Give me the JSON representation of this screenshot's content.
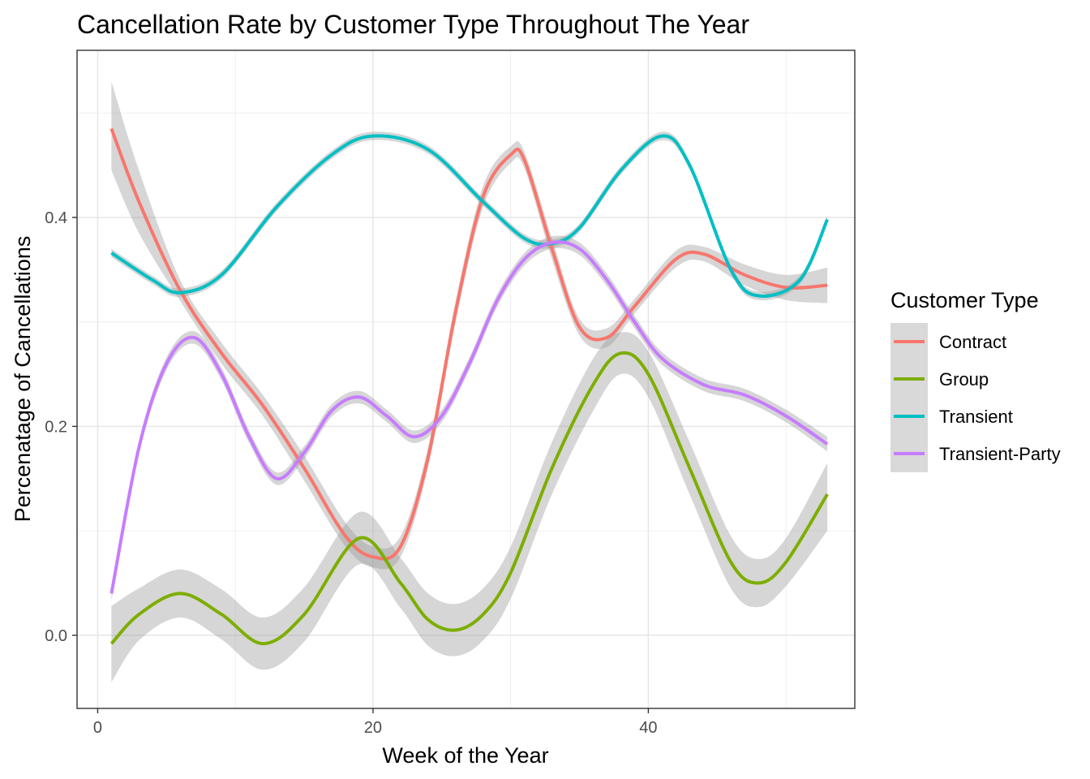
{
  "chart_data": {
    "type": "line",
    "title": "Cancellation Rate by Customer Type Throughout The Year",
    "xlabel": "Week of the Year",
    "ylabel": "Percenatage of Cancellations",
    "xlim": [
      -1.5,
      55.0
    ],
    "ylim": [
      -0.07,
      0.56
    ],
    "x_ticks": [
      0,
      20,
      40
    ],
    "y_ticks": [
      0.0,
      0.2,
      0.4
    ],
    "x_tick_labels": [
      "0",
      "20",
      "40"
    ],
    "y_tick_labels": [
      "0.0",
      "0.2",
      "0.4"
    ],
    "grid": true,
    "legend": {
      "title": "Customer Type",
      "position": "right"
    },
    "series": [
      {
        "name": "Contract",
        "color": "#F8766D",
        "x": [
          1,
          3,
          6,
          9,
          12,
          15,
          18,
          20,
          22,
          24,
          26,
          28,
          30,
          31,
          33,
          35,
          37,
          39,
          42,
          44,
          47,
          50,
          53
        ],
        "y": [
          0.485,
          0.415,
          0.33,
          0.27,
          0.22,
          0.16,
          0.095,
          0.075,
          0.085,
          0.17,
          0.31,
          0.42,
          0.46,
          0.455,
          0.37,
          0.295,
          0.285,
          0.315,
          0.36,
          0.365,
          0.345,
          0.333,
          0.335
        ],
        "upper": [
          0.53,
          0.445,
          0.34,
          0.28,
          0.23,
          0.172,
          0.108,
          0.085,
          0.095,
          0.18,
          0.32,
          0.43,
          0.468,
          0.463,
          0.38,
          0.303,
          0.294,
          0.322,
          0.368,
          0.372,
          0.355,
          0.345,
          0.352
        ],
        "lower": [
          0.445,
          0.385,
          0.32,
          0.26,
          0.21,
          0.148,
          0.085,
          0.065,
          0.075,
          0.16,
          0.3,
          0.41,
          0.452,
          0.447,
          0.36,
          0.287,
          0.276,
          0.308,
          0.352,
          0.358,
          0.335,
          0.321,
          0.318
        ]
      },
      {
        "name": "Group",
        "color": "#7CAE00",
        "x": [
          1,
          3,
          6,
          9,
          12,
          15,
          19,
          22,
          24,
          26,
          28,
          30,
          33,
          36,
          38,
          40,
          43,
          46,
          48,
          50,
          53
        ],
        "y": [
          -0.008,
          0.02,
          0.04,
          0.02,
          -0.008,
          0.02,
          0.093,
          0.05,
          0.015,
          0.005,
          0.02,
          0.06,
          0.16,
          0.24,
          0.27,
          0.25,
          0.16,
          0.07,
          0.05,
          0.07,
          0.135
        ],
        "upper": [
          0.028,
          0.045,
          0.063,
          0.044,
          0.017,
          0.046,
          0.118,
          0.074,
          0.04,
          0.03,
          0.045,
          0.085,
          0.185,
          0.265,
          0.29,
          0.272,
          0.185,
          0.095,
          0.073,
          0.093,
          0.165
        ],
        "lower": [
          -0.045,
          -0.005,
          0.017,
          -0.004,
          -0.033,
          -0.006,
          0.068,
          0.026,
          -0.01,
          -0.02,
          -0.005,
          0.035,
          0.135,
          0.215,
          0.25,
          0.228,
          0.135,
          0.045,
          0.027,
          0.047,
          0.1
        ]
      },
      {
        "name": "Transient",
        "color": "#00BFC4",
        "x": [
          1,
          4,
          6,
          9,
          13,
          17,
          20,
          24,
          28,
          31,
          33,
          35,
          38,
          41,
          43,
          46,
          48,
          51,
          53
        ],
        "y": [
          0.366,
          0.34,
          0.328,
          0.345,
          0.41,
          0.46,
          0.478,
          0.465,
          0.415,
          0.38,
          0.375,
          0.39,
          0.445,
          0.478,
          0.45,
          0.35,
          0.325,
          0.34,
          0.398
        ],
        "upper": [
          0.37,
          0.344,
          0.332,
          0.349,
          0.414,
          0.464,
          0.482,
          0.469,
          0.419,
          0.384,
          0.379,
          0.394,
          0.449,
          0.482,
          0.454,
          0.354,
          0.329,
          0.344,
          0.402
        ],
        "lower": [
          0.362,
          0.336,
          0.324,
          0.341,
          0.406,
          0.456,
          0.474,
          0.461,
          0.411,
          0.376,
          0.371,
          0.386,
          0.441,
          0.474,
          0.446,
          0.346,
          0.321,
          0.336,
          0.394
        ]
      },
      {
        "name": "Transient-Party",
        "color": "#C77CFF",
        "x": [
          1,
          3,
          5,
          7,
          9,
          11,
          13,
          15,
          17,
          19,
          21,
          23,
          25,
          27,
          29,
          31,
          33,
          35,
          37,
          39,
          41,
          44,
          47,
          50,
          53
        ],
        "y": [
          0.04,
          0.18,
          0.26,
          0.285,
          0.25,
          0.19,
          0.15,
          0.175,
          0.215,
          0.228,
          0.21,
          0.19,
          0.21,
          0.26,
          0.32,
          0.36,
          0.376,
          0.37,
          0.34,
          0.3,
          0.265,
          0.24,
          0.23,
          0.21,
          0.183
        ],
        "upper": [
          0.047,
          0.186,
          0.266,
          0.291,
          0.256,
          0.196,
          0.156,
          0.181,
          0.221,
          0.234,
          0.216,
          0.196,
          0.216,
          0.266,
          0.326,
          0.366,
          0.382,
          0.376,
          0.346,
          0.306,
          0.271,
          0.246,
          0.236,
          0.216,
          0.19
        ],
        "lower": [
          0.033,
          0.174,
          0.254,
          0.279,
          0.244,
          0.184,
          0.144,
          0.169,
          0.209,
          0.222,
          0.204,
          0.184,
          0.204,
          0.254,
          0.314,
          0.354,
          0.37,
          0.364,
          0.334,
          0.294,
          0.259,
          0.234,
          0.224,
          0.204,
          0.176
        ]
      }
    ]
  }
}
